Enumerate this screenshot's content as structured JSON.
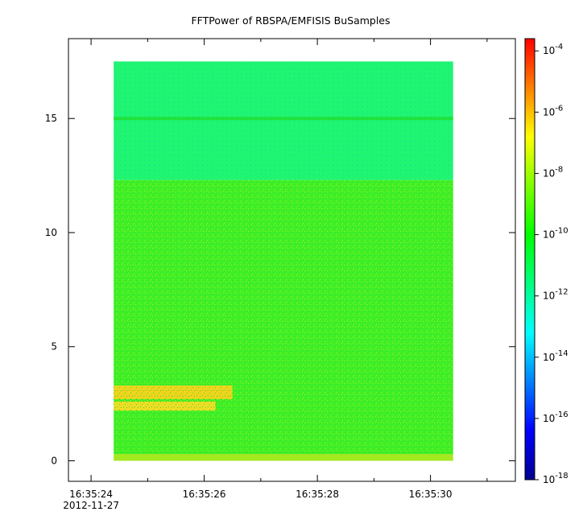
{
  "chart_data": {
    "type": "heatmap",
    "title": "FFTPower of RBSPA/EMFISIS  BuSamples",
    "x_axis": {
      "ticks": [
        {
          "value": 24,
          "label": "16:35:24"
        },
        {
          "value": 26,
          "label": "16:35:26"
        },
        {
          "value": 28,
          "label": "16:35:28"
        },
        {
          "value": 30,
          "label": "16:35:30"
        }
      ],
      "minor_ticks": [
        25,
        27,
        29,
        31
      ],
      "date_label": "2012-11-27",
      "range": [
        23.6,
        31.5
      ],
      "data_extent": [
        24.4,
        30.4
      ]
    },
    "y_axis": {
      "ticks": [
        {
          "value": 0,
          "label": "0"
        },
        {
          "value": 5,
          "label": "5"
        },
        {
          "value": 10,
          "label": "10"
        },
        {
          "value": 15,
          "label": "15"
        }
      ],
      "range": [
        -0.9,
        18.5
      ],
      "data_extent": [
        0,
        17.5
      ]
    },
    "colorbar": {
      "scale": "log",
      "range_exponents": [
        -18,
        -3.6
      ],
      "tick_exponents": [
        -4,
        -6,
        -8,
        -10,
        -12,
        -14,
        -16,
        -18
      ],
      "base_label": "10",
      "colors": [
        "#00008f",
        "#0000ff",
        "#0080ff",
        "#00ffff",
        "#00ff80",
        "#00ff00",
        "#80ff00",
        "#ffff00",
        "#ff8000",
        "#ff0000"
      ]
    },
    "regions": [
      {
        "x": [
          24.4,
          30.4
        ],
        "y": [
          12.3,
          17.5
        ],
        "log_power": -11.8,
        "color": "#1ff573"
      },
      {
        "x": [
          24.4,
          30.4
        ],
        "y": [
          14.93,
          15.07
        ],
        "log_power": -10.8,
        "color": "#20e03a"
      },
      {
        "x": [
          24.4,
          30.4
        ],
        "y": [
          0.3,
          12.3
        ],
        "log_power": -10.4,
        "color": "#3fef26"
      },
      {
        "x": [
          24.4,
          30.4
        ],
        "y": [
          0,
          0.3
        ],
        "log_power": -9.0,
        "color": "#a4e81f"
      },
      {
        "x": [
          24.4,
          26.5
        ],
        "y": [
          2.7,
          3.3
        ],
        "log_power": -8.0,
        "color": "#f2d21c"
      },
      {
        "x": [
          24.4,
          26.2
        ],
        "y": [
          2.2,
          2.6
        ],
        "log_power": -8.3,
        "color": "#f0dc24"
      }
    ]
  }
}
